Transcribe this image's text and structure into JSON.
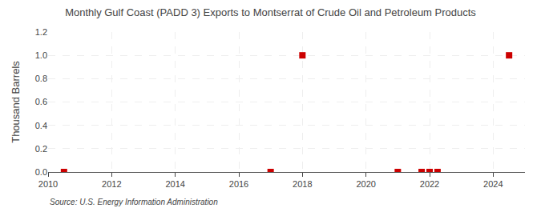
{
  "chart_data": {
    "type": "scatter",
    "title": "Monthly Gulf Coast (PADD 3) Exports to Montserrat of Crude Oil and Petroleum Products",
    "ylabel": "Thousand Barrels",
    "annotations": [
      "Source: U.S. Energy Information Administration"
    ],
    "x": [
      2010.5,
      2017.0,
      2018.0,
      2021.0,
      2021.75,
      2022.0,
      2022.25,
      2024.5
    ],
    "values": [
      0.0,
      0.0,
      1.0,
      0.0,
      0.0,
      0.0,
      0.0,
      1.0
    ],
    "color": "#cc0000",
    "marker": "square",
    "xlim": [
      2010,
      2025
    ],
    "xticks": [
      2010,
      2012,
      2014,
      2016,
      2018,
      2020,
      2022,
      2024
    ],
    "ylim": [
      0.0,
      1.2
    ],
    "yticks": [
      {
        "value": 0.0,
        "label": "0.0"
      },
      0.2,
      0.4,
      0.6,
      0.8,
      {
        "value": 1.0,
        "label": "1.0"
      },
      1.2
    ],
    "grid": true
  }
}
